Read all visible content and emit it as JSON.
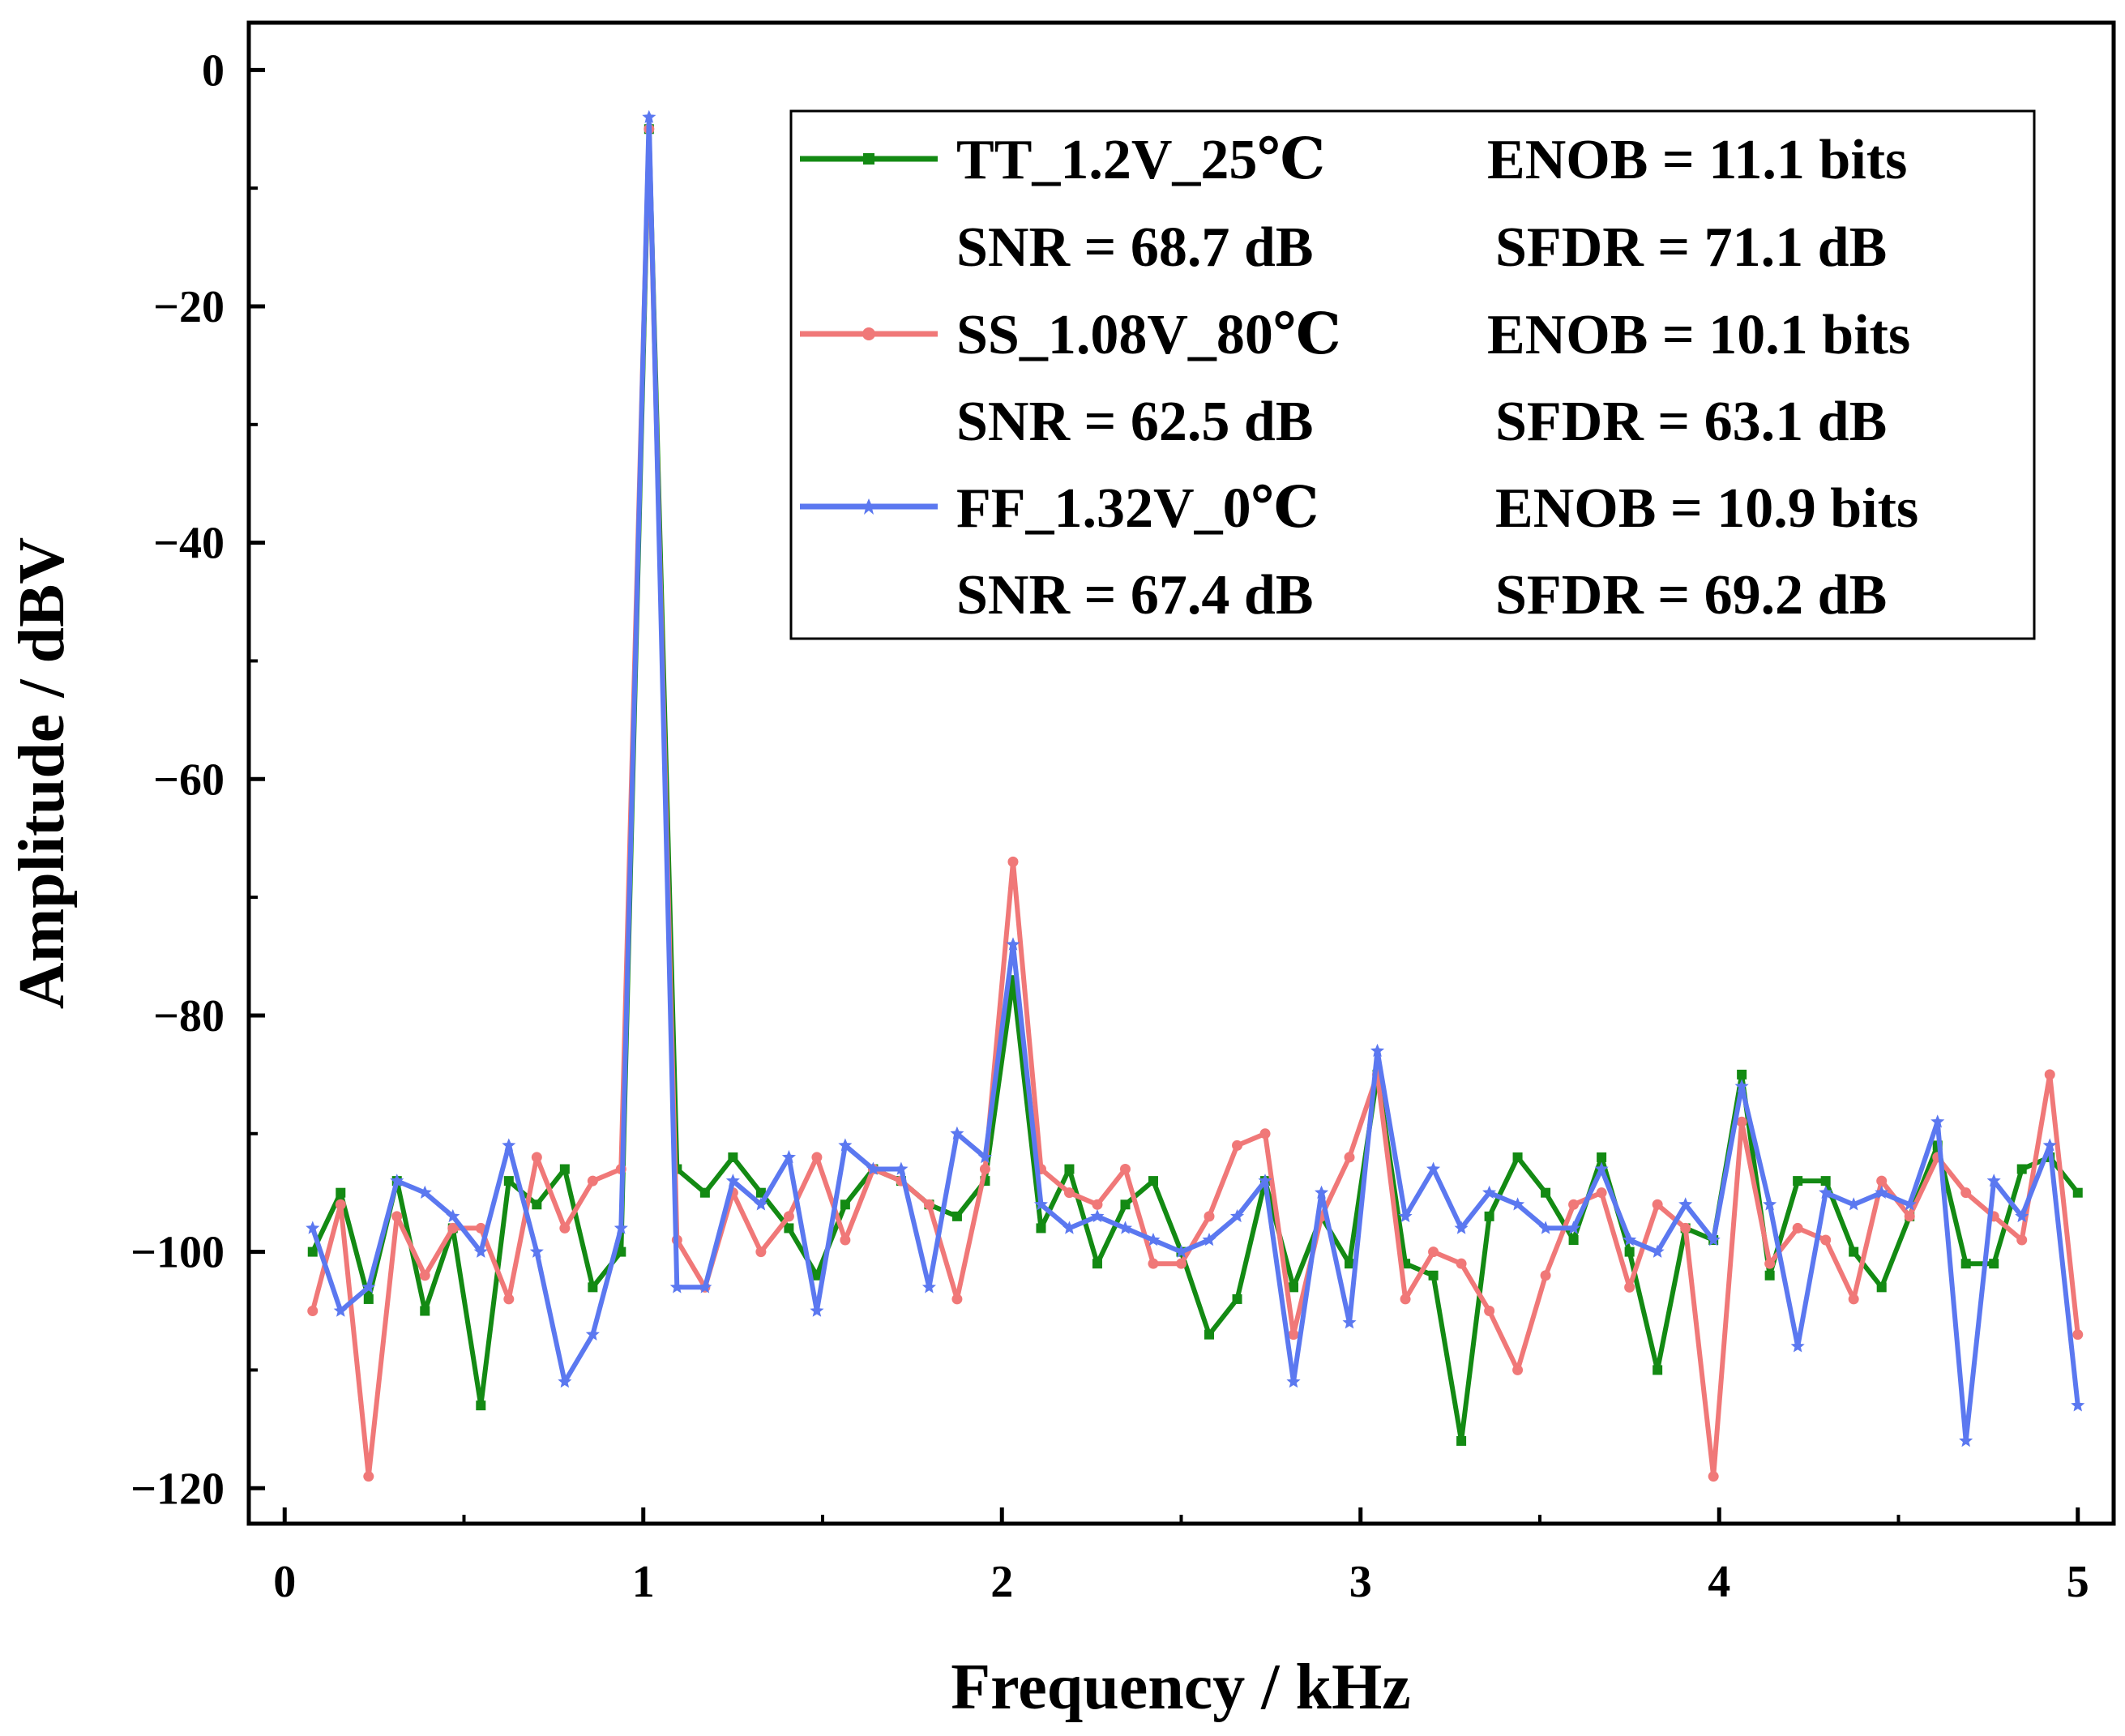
{
  "chart_data": {
    "type": "line",
    "xlabel": "Frequency / kHz",
    "ylabel": "Amplitude / dBV",
    "xlim": [
      -0.1,
      5.1
    ],
    "ylim": [
      -123,
      4
    ],
    "xticks": [
      0,
      1,
      2,
      3,
      4,
      5
    ],
    "xtick_labels": [
      "0",
      "1",
      "2",
      "3",
      "4",
      "5"
    ],
    "yticks": [
      0,
      -20,
      -40,
      -60,
      -80,
      -100,
      -120
    ],
    "ytick_labels": [
      "0",
      "−20",
      "−40",
      "−60",
      "−80",
      "−100",
      "−120"
    ],
    "x": [
      0.078,
      0.156,
      0.234,
      0.313,
      0.391,
      0.469,
      0.547,
      0.625,
      0.703,
      0.781,
      0.859,
      0.938,
      1.016,
      1.094,
      1.172,
      1.25,
      1.328,
      1.406,
      1.484,
      1.563,
      1.641,
      1.719,
      1.797,
      1.875,
      1.953,
      2.031,
      2.109,
      2.188,
      2.266,
      2.344,
      2.422,
      2.5,
      2.578,
      2.656,
      2.734,
      2.813,
      2.891,
      2.969,
      3.047,
      3.125,
      3.203,
      3.281,
      3.359,
      3.438,
      3.516,
      3.594,
      3.672,
      3.75,
      3.828,
      3.906,
      3.984,
      4.063,
      4.141,
      4.219,
      4.297,
      4.375,
      4.453,
      4.531,
      4.609,
      4.688,
      4.766,
      4.844,
      4.922,
      5.0
    ],
    "series": [
      {
        "name": "TT_1.2V_25℃",
        "color": "#138a13",
        "marker": "square",
        "values": [
          -100,
          -95,
          -104,
          -94,
          -105,
          -98,
          -113,
          -94,
          -96,
          -93,
          -103,
          -100,
          -5,
          -93,
          -95,
          -92,
          -95,
          -98,
          -102,
          -96,
          -93,
          -94,
          -96,
          -97,
          -94,
          -77,
          -98,
          -93,
          -101,
          -96,
          -94,
          -100,
          -107,
          -104,
          -94,
          -103,
          -97,
          -101,
          -85,
          -101,
          -102,
          -116,
          -97,
          -92,
          -95,
          -99,
          -92,
          -100,
          -110,
          -98,
          -99,
          -85,
          -102,
          -94,
          -94,
          -100,
          -103,
          -97,
          -91,
          -101,
          -101,
          -93,
          -92,
          -95
        ]
      },
      {
        "name": "SS_1.08V_80℃",
        "color": "#f07878",
        "marker": "circle",
        "values": [
          -105,
          -96,
          -119,
          -97,
          -102,
          -98,
          -98,
          -104,
          -92,
          -98,
          -94,
          -93,
          -5,
          -99,
          -103,
          -95,
          -100,
          -97,
          -92,
          -99,
          -93,
          -94,
          -96,
          -104,
          -93,
          -67,
          -93,
          -95,
          -96,
          -93,
          -101,
          -101,
          -97,
          -91,
          -90,
          -107,
          -97,
          -92,
          -85,
          -104,
          -100,
          -101,
          -105,
          -110,
          -102,
          -96,
          -95,
          -103,
          -96,
          -98,
          -119,
          -89,
          -101,
          -98,
          -99,
          -104,
          -94,
          -97,
          -92,
          -95,
          -97,
          -99,
          -85,
          -107
        ]
      },
      {
        "name": "FF_1.32V_0℃",
        "color": "#5b78f0",
        "marker": "star",
        "values": [
          -98,
          -105,
          -103,
          -94,
          -95,
          -97,
          -100,
          -91,
          -100,
          -111,
          -107,
          -98,
          -4,
          -103,
          -103,
          -94,
          -96,
          -92,
          -105,
          -91,
          -93,
          -93,
          -103,
          -90,
          -92,
          -74,
          -96,
          -98,
          -97,
          -98,
          -99,
          -100,
          -99,
          -97,
          -94,
          -111,
          -95,
          -106,
          -83,
          -97,
          -93,
          -98,
          -95,
          -96,
          -98,
          -98,
          -93,
          -99,
          -100,
          -96,
          -99,
          -86,
          -96,
          -108,
          -95,
          -96,
          -95,
          -96,
          -89,
          -116,
          -94,
          -97,
          -91,
          -113
        ]
      }
    ],
    "legend": {
      "position": "top-right",
      "entries": [
        {
          "name": "TT_1.2V_25℃",
          "enob": "ENOB = 11.1 bits",
          "snr": "SNR = 68.7 dB",
          "sfdr": "SFDR = 71.1 dB"
        },
        {
          "name": "SS_1.08V_80℃",
          "enob": "ENOB = 10.1 bits",
          "snr": "SNR = 62.5 dB",
          "sfdr": "SFDR = 63.1 dB"
        },
        {
          "name": "FF_1.32V_0℃",
          "enob": "ENOB = 10.9 bits",
          "snr": "SNR = 67.4 dB",
          "sfdr": "SFDR = 69.2 dB"
        }
      ]
    }
  }
}
